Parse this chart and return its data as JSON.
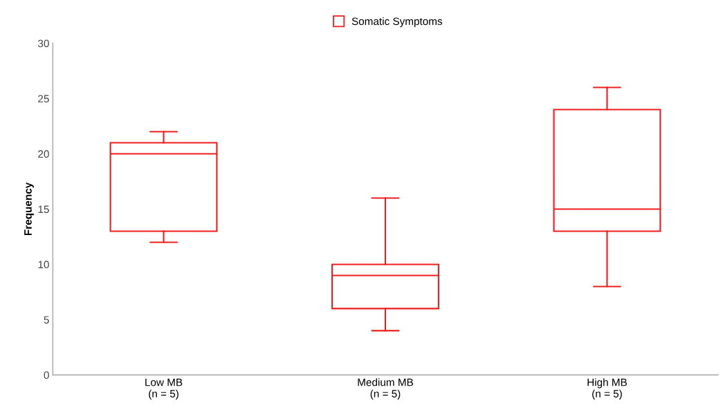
{
  "chart_data": {
    "type": "box",
    "ylabel": "Frequency",
    "categories": [
      "Low MB\n(n = 5)",
      "Medium MB\n(n = 5)",
      "High MB\n(n = 5)"
    ],
    "series": [
      {
        "name": "Somatic Symptoms",
        "color": "#ee1c1c",
        "boxes": [
          {
            "low": 12,
            "q1": 13,
            "median": 20,
            "q3": 21,
            "high": 22
          },
          {
            "low": 4,
            "q1": 6,
            "median": 9,
            "q3": 10,
            "high": 16
          },
          {
            "low": 8,
            "q1": 13,
            "median": 15,
            "q3": 24,
            "high": 26
          }
        ]
      }
    ],
    "ylim": [
      0,
      30
    ],
    "yticks": [
      0,
      5,
      10,
      15,
      20,
      25,
      30
    ],
    "grid": false,
    "legend": "top"
  }
}
